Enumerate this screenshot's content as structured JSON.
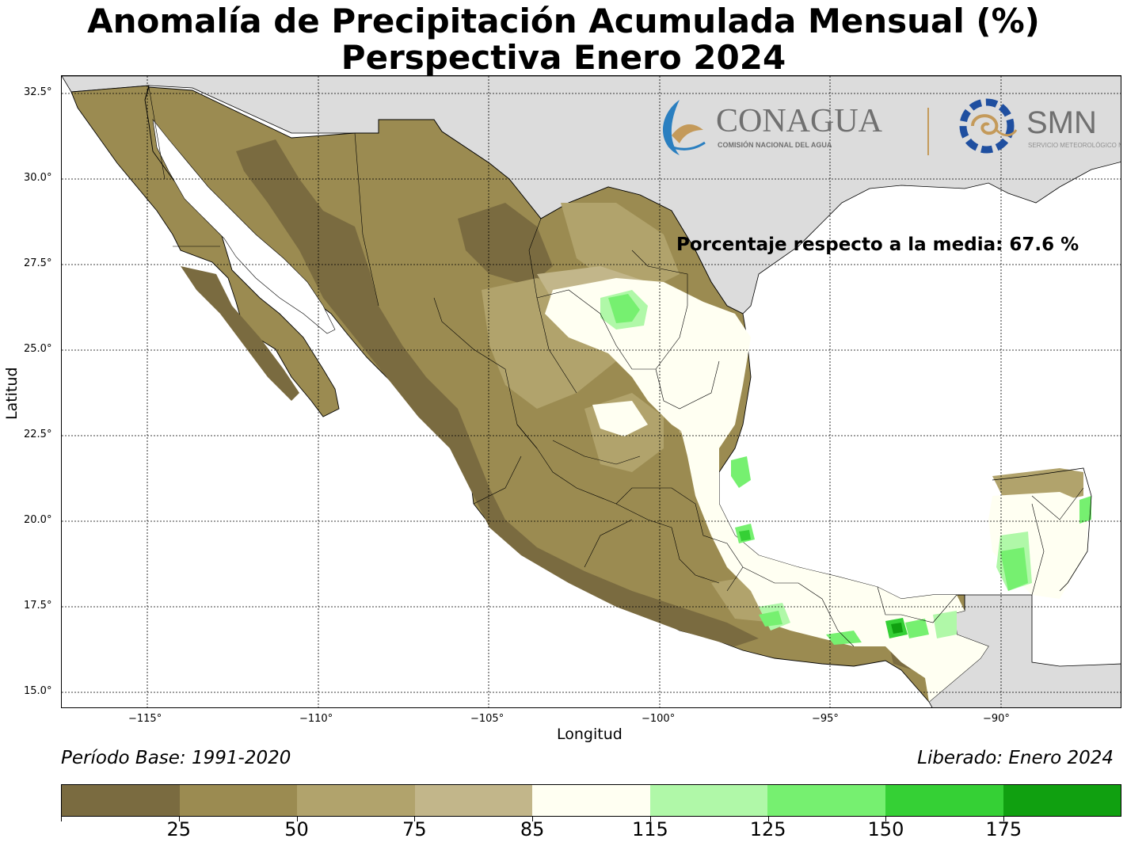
{
  "title": {
    "line1": "Anomalía de Precipitación Acumulada Mensual (%)",
    "line2": "Perspectiva Enero 2024"
  },
  "axes": {
    "xlabel": "Longitud",
    "ylabel": "Latitud",
    "xticks": [
      "−115°",
      "−110°",
      "−105°",
      "−100°",
      "−95°",
      "−90°"
    ],
    "yticks": [
      "32.5°",
      "30.0°",
      "27.5°",
      "25.0°",
      "22.5°",
      "20.0°",
      "17.5°",
      "15.0°"
    ],
    "grid": "dotted"
  },
  "annotation": "Porcentaje respecto a la media: 67.6 %",
  "logos": {
    "conagua_name": "CONAGUA",
    "conagua_sub": "COMISIÓN NACIONAL DEL AGUA",
    "smn_name": "SMN",
    "smn_sub": "SERVICIO METEOROLÓGICO NACIONAL"
  },
  "footer": {
    "base_period": "Período Base: 1991-2020",
    "released": "Liberado: Enero 2024"
  },
  "colorbar": {
    "colors": [
      "#7a6b40",
      "#9b8b51",
      "#b1a36c",
      "#c2b68a",
      "#fffff2",
      "#b0f8a8",
      "#76f070",
      "#35d035",
      "#10a010"
    ],
    "labels": [
      "25",
      "50",
      "75",
      "85",
      "115",
      "125",
      "150",
      "175"
    ]
  },
  "colors": {
    "land_outside": "#dcdcdc",
    "water": "#ffffff"
  }
}
